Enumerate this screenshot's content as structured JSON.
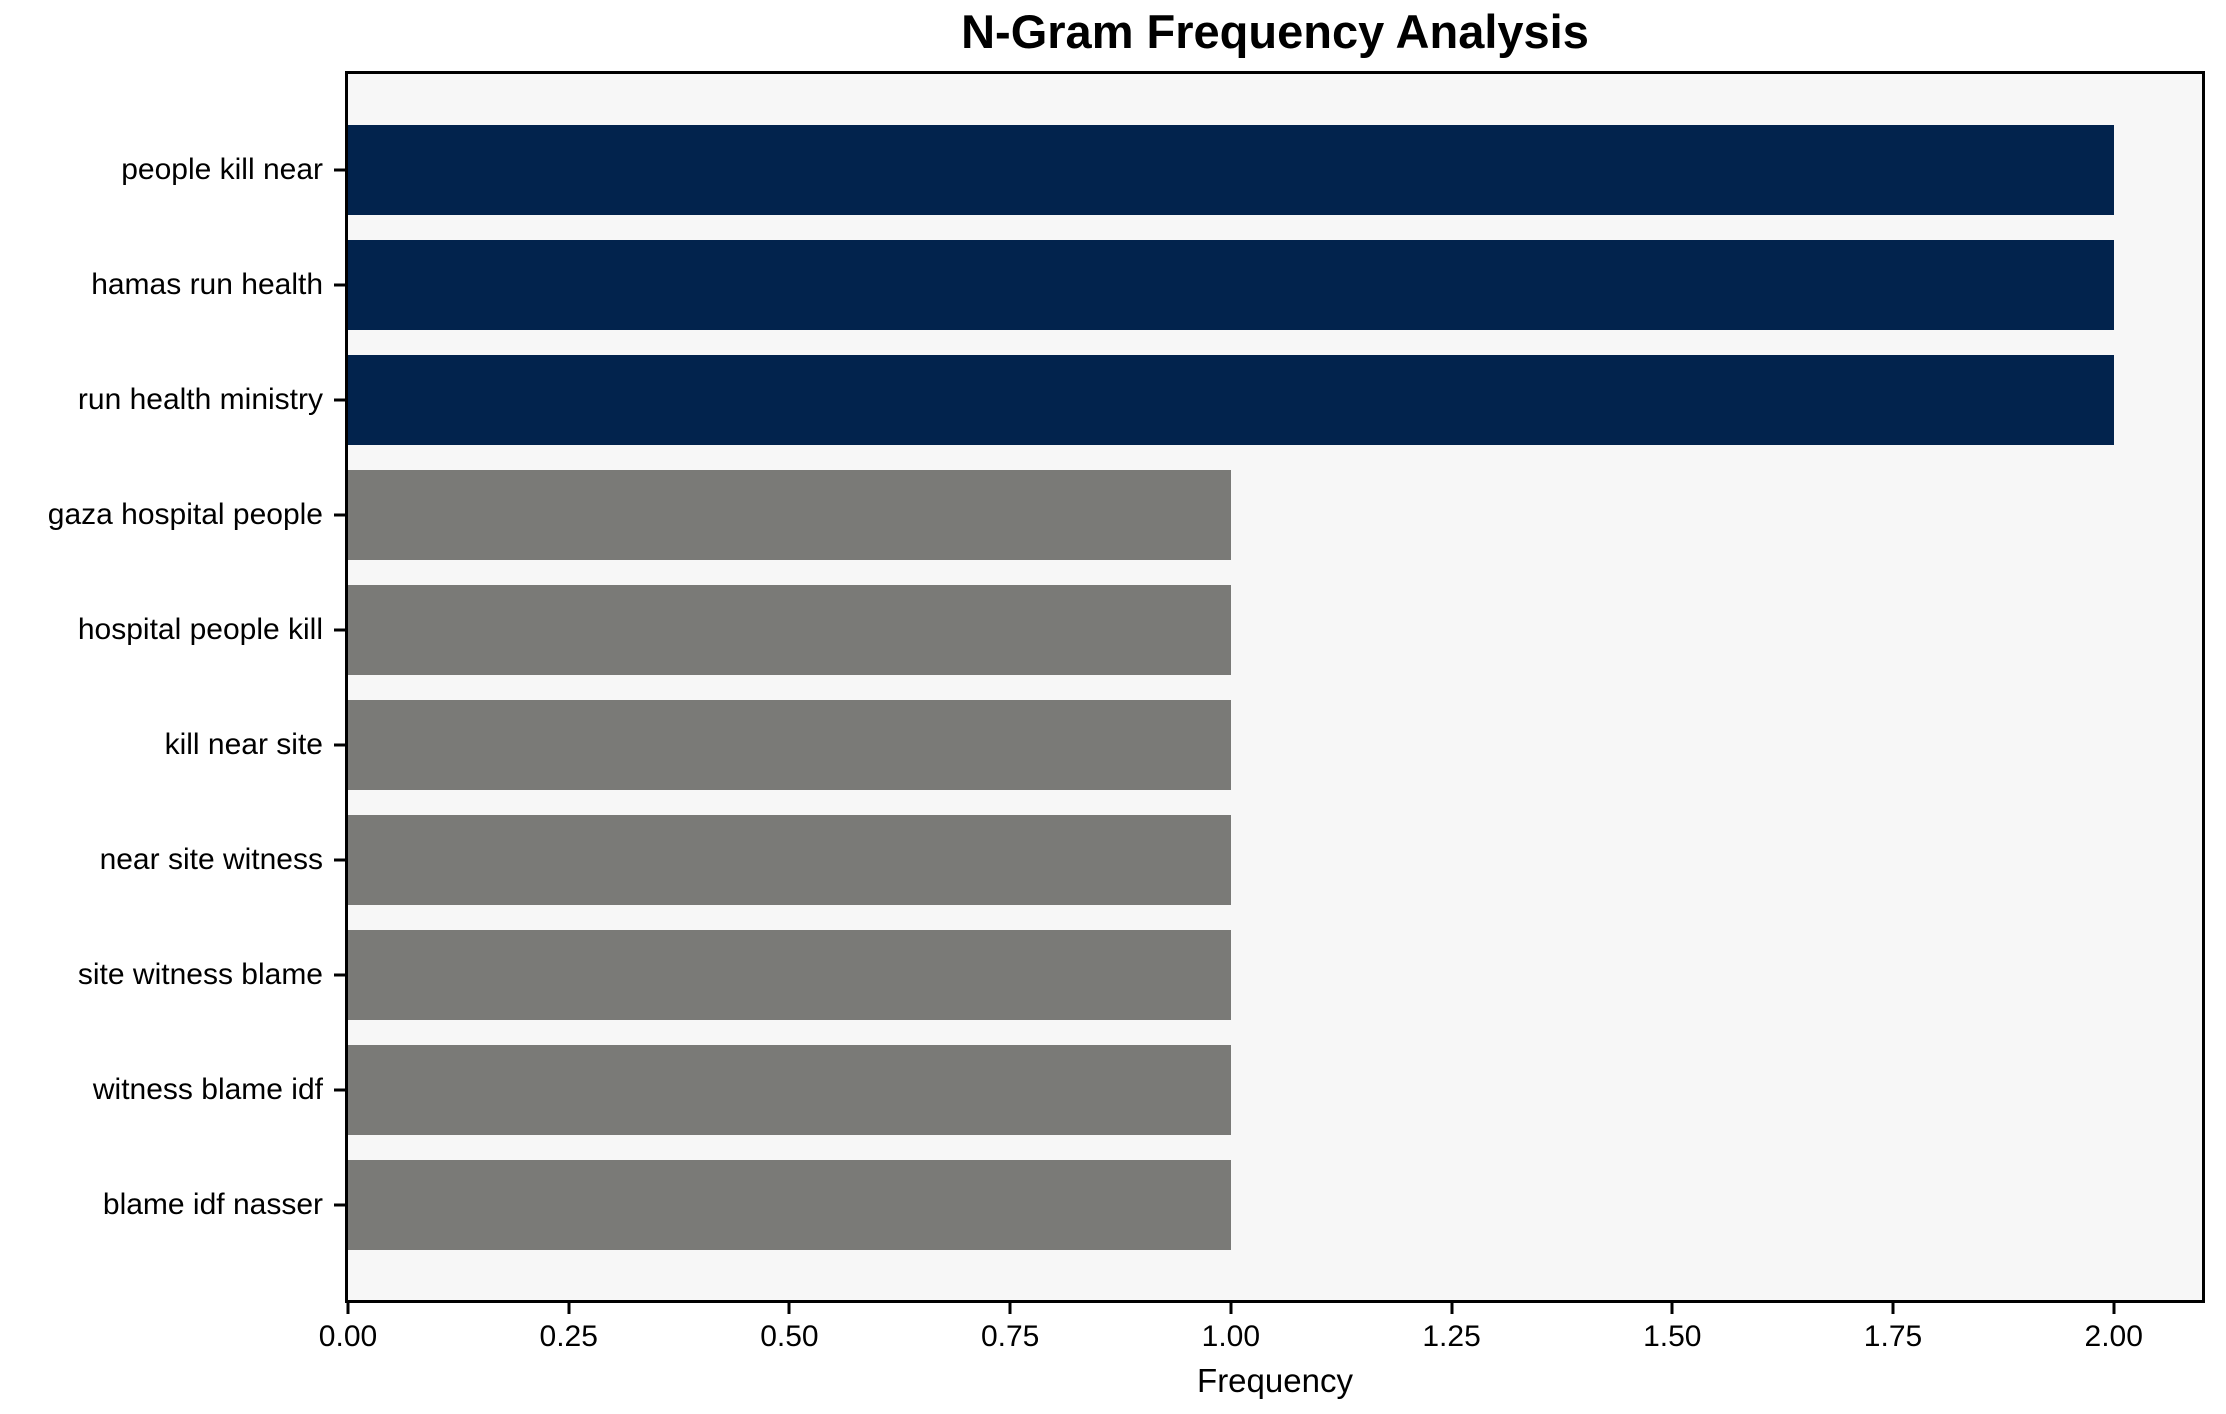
{
  "chart_data": {
    "type": "bar",
    "orientation": "horizontal",
    "title": "N-Gram Frequency Analysis",
    "xlabel": "Frequency",
    "ylabel": "",
    "categories": [
      "people kill near",
      "hamas run health",
      "run health ministry",
      "gaza hospital people",
      "hospital people kill",
      "kill near site",
      "near site witness",
      "site witness blame",
      "witness blame idf",
      "blame idf nasser"
    ],
    "values": [
      2,
      2,
      2,
      1,
      1,
      1,
      1,
      1,
      1,
      1
    ],
    "xlim": [
      0,
      2.1
    ],
    "xticks": [
      0,
      0.25,
      0.5,
      0.75,
      1.0,
      1.25,
      1.5,
      1.75,
      2.0
    ],
    "xtick_labels": [
      "0.00",
      "0.25",
      "0.50",
      "0.75",
      "1.00",
      "1.25",
      "1.50",
      "1.75",
      "2.00"
    ],
    "grid": false,
    "legend": false,
    "colors": {
      "highlight_bar": "#02234d",
      "default_bar": "#7a7a77",
      "plot_background": "#f7f7f7",
      "figure_background": "#ffffff",
      "text": "#000000",
      "frame": "#000000"
    },
    "bar_color_keys": [
      "highlight_bar",
      "highlight_bar",
      "highlight_bar",
      "default_bar",
      "default_bar",
      "default_bar",
      "default_bar",
      "default_bar",
      "default_bar",
      "default_bar"
    ]
  }
}
